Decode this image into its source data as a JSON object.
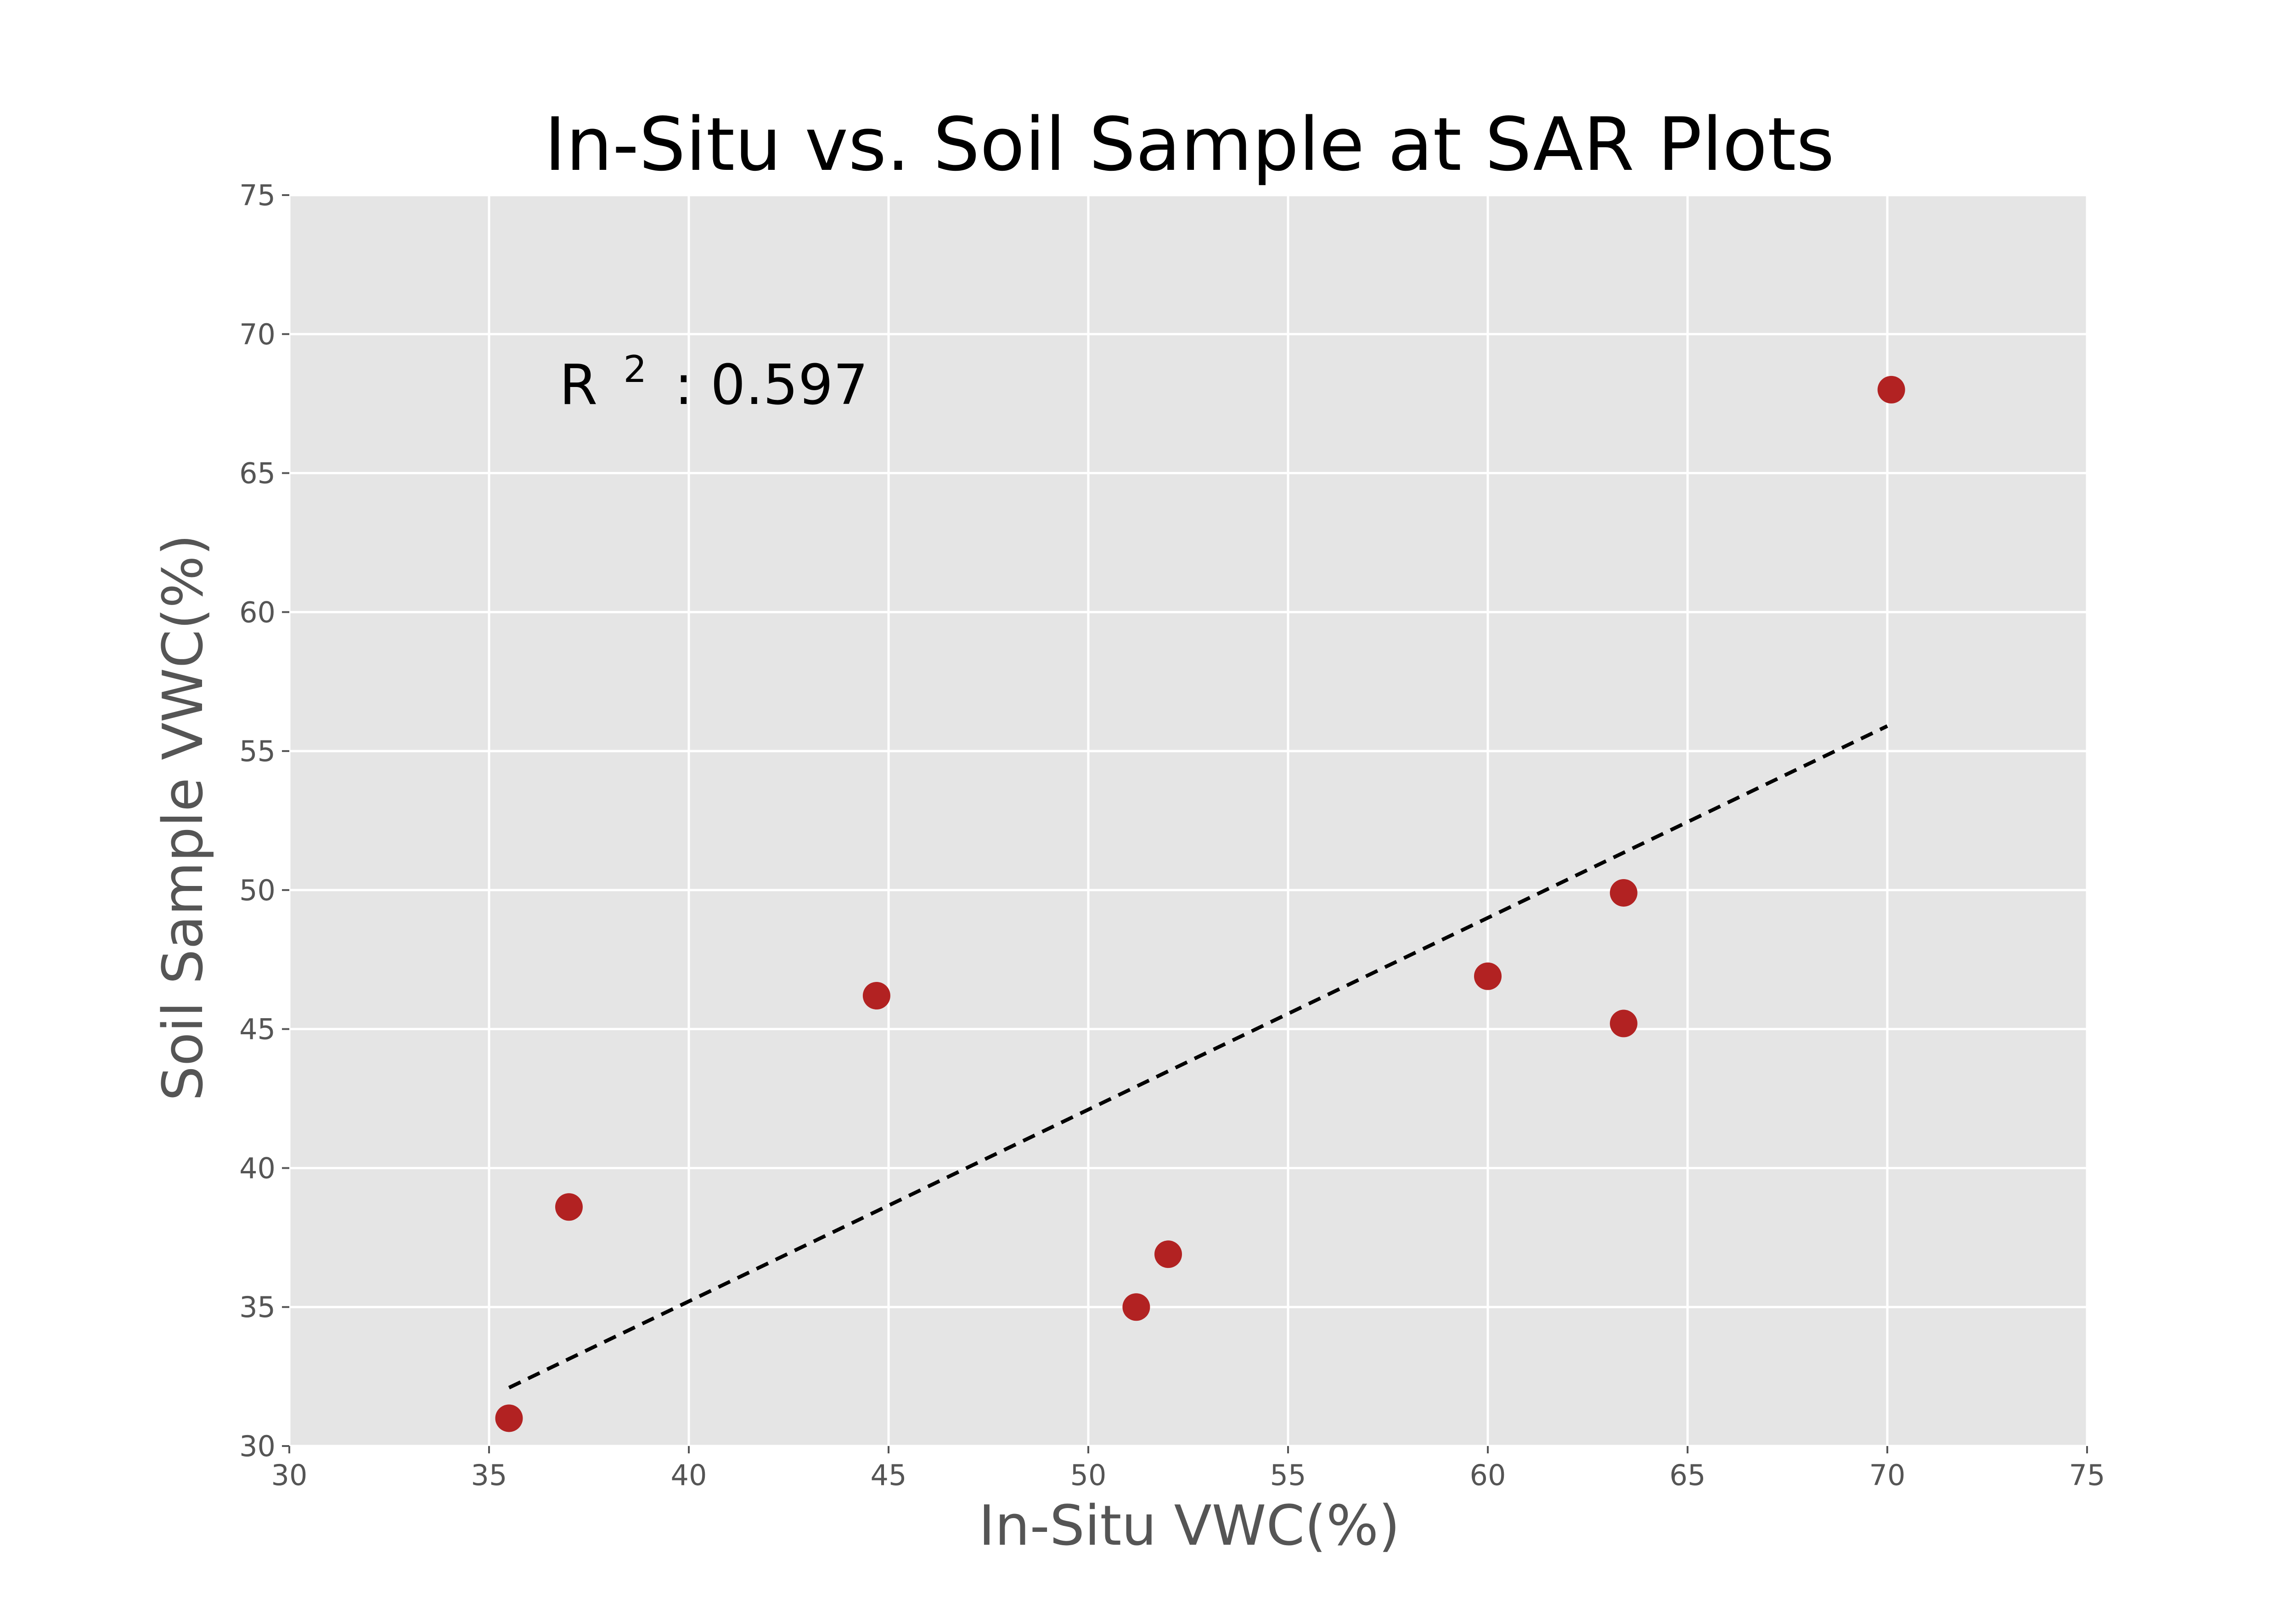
{
  "chart_data": {
    "type": "scatter",
    "title": "In-Situ vs. Soil Sample at SAR Plots",
    "xlabel": "In-Situ VWC(%)",
    "ylabel": "Soil Sample VWC(%)",
    "xlim": [
      30,
      75
    ],
    "ylim": [
      30,
      75
    ],
    "xticks": [
      "30",
      "35",
      "40",
      "45",
      "50",
      "55",
      "60",
      "65",
      "70",
      "75"
    ],
    "yticks": [
      "30",
      "35",
      "40",
      "45",
      "50",
      "55",
      "60",
      "65",
      "70",
      "75"
    ],
    "grid": true,
    "series": [
      {
        "points": [
          {
            "x": 35.5,
            "y": 31.0
          },
          {
            "x": 37.0,
            "y": 38.6
          },
          {
            "x": 44.7,
            "y": 46.2
          },
          {
            "x": 51.2,
            "y": 35.0
          },
          {
            "x": 52.0,
            "y": 36.9
          },
          {
            "x": 60.0,
            "y": 46.9
          },
          {
            "x": 63.4,
            "y": 49.9
          },
          {
            "x": 63.4,
            "y": 45.2
          },
          {
            "x": 70.1,
            "y": 68.0
          }
        ]
      }
    ],
    "fit_line": {
      "style": "dashed",
      "points": [
        {
          "x": 35.5,
          "y": 32.1
        },
        {
          "x": 70.0,
          "y": 55.9
        }
      ]
    },
    "annotation": {
      "prefix": "R",
      "superscript": "2",
      "suffix": ": 0.597"
    },
    "colors": {
      "background": "#ffffff",
      "plot_background": "#e5e5e5",
      "grid": "#ffffff",
      "point": "#b22222",
      "fit_line": "#000000",
      "tick_text": "#555555"
    }
  }
}
